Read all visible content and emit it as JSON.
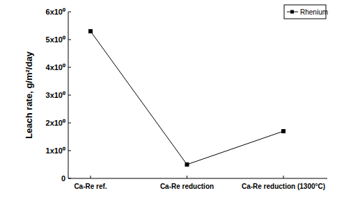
{
  "chart_data": {
    "type": "line",
    "y_label": "Leach rate, g/m²/day",
    "categories": [
      "Ca-Re ref.",
      "Ca-Re reduction",
      "Ca-Re reduction (1300°C)"
    ],
    "series": [
      {
        "name": "Rhenium",
        "color": "#000000",
        "marker": "square",
        "line_style": "solid",
        "values": [
          5.3,
          0.5,
          1.7
        ]
      }
    ],
    "ylim": [
      0,
      6
    ],
    "yticks": [
      0,
      {
        "value": 1,
        "label": "1x10⁰"
      },
      {
        "value": 2,
        "label": "2x10⁰"
      },
      {
        "value": 3,
        "label": "3x10⁰"
      },
      {
        "value": 4,
        "label": "4x10⁰"
      },
      {
        "value": 5,
        "label": "5x10⁰"
      },
      {
        "value": 6,
        "label": "6x10⁰"
      }
    ],
    "legend": "upper right",
    "grid": false
  }
}
